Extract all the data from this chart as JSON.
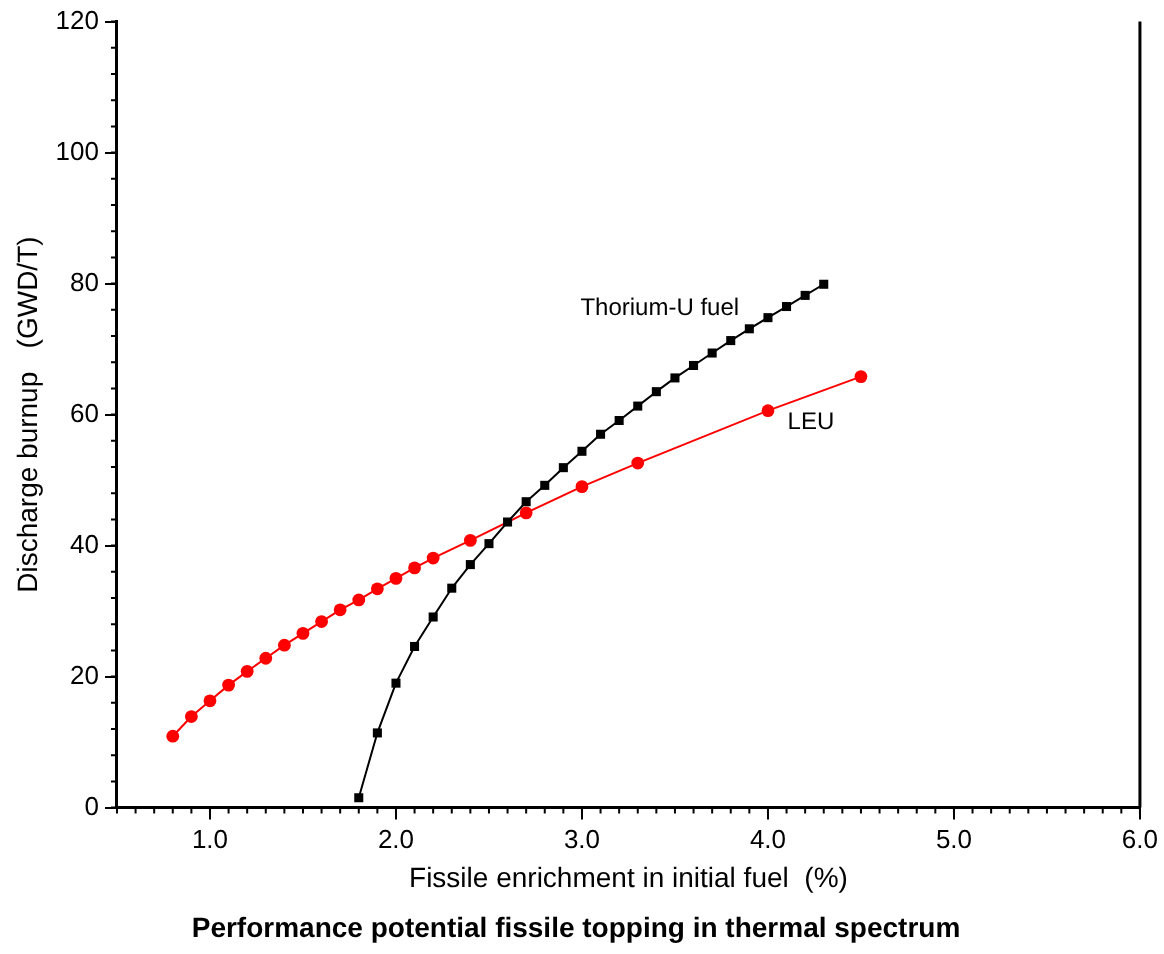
{
  "chart_data": {
    "type": "line",
    "title": "Performance potential fissile topping in thermal spectrum",
    "xlabel": "Fissile enrichment in initial fuel  (%)",
    "ylabel": "Discharge burnup   (GWD/T)",
    "xlim": [
      0.5,
      6
    ],
    "xticks": [
      {
        "value": 1,
        "label": "1.0"
      },
      {
        "value": 2,
        "label": "2.0"
      },
      {
        "value": 3,
        "label": "3.0"
      },
      {
        "value": 4,
        "label": "4.0"
      },
      {
        "value": 5,
        "label": "5.0"
      },
      {
        "value": 6,
        "label": "6.0"
      }
    ],
    "ylim": [
      0,
      120
    ],
    "yticks": [
      0,
      20,
      40,
      60,
      80,
      100,
      120
    ],
    "grid": false,
    "legend": false,
    "series": [
      {
        "name": "Thorium-U fuel",
        "color": "#000000",
        "marker": "square",
        "x": [
          1.8,
          1.9,
          2.0,
          2.1,
          2.2,
          2.3,
          2.4,
          2.5,
          2.6,
          2.7,
          2.8,
          2.9,
          3.0,
          3.1,
          3.2,
          3.3,
          3.4,
          3.5,
          3.6,
          3.7,
          3.8,
          3.9,
          4.0,
          4.1,
          4.2,
          4.3
        ],
        "values": [
          1.5,
          11.4,
          19,
          24.6,
          29.1,
          33.5,
          37.1,
          40.3,
          43.6,
          46.7,
          49.2,
          51.9,
          54.4,
          57,
          59.1,
          61.3,
          63.5,
          65.6,
          67.5,
          69.4,
          71.3,
          73.1,
          74.8,
          76.5,
          78.2,
          79.9
        ]
      },
      {
        "name": "LEU",
        "color": "#ff0000",
        "marker": "circle",
        "x": [
          0.8,
          0.9,
          1.0,
          1.1,
          1.2,
          1.3,
          1.4,
          1.5,
          1.6,
          1.7,
          1.8,
          1.9,
          2.0,
          2.1,
          2.2,
          2.4,
          2.7,
          3.0,
          3.3,
          4.0,
          4.5
        ],
        "values": [
          10.9,
          13.9,
          16.3,
          18.7,
          20.8,
          22.8,
          24.8,
          26.6,
          28.4,
          30.2,
          31.7,
          33.4,
          35,
          36.6,
          38.1,
          40.8,
          45,
          49,
          52.6,
          60.6,
          65.8
        ]
      }
    ]
  }
}
